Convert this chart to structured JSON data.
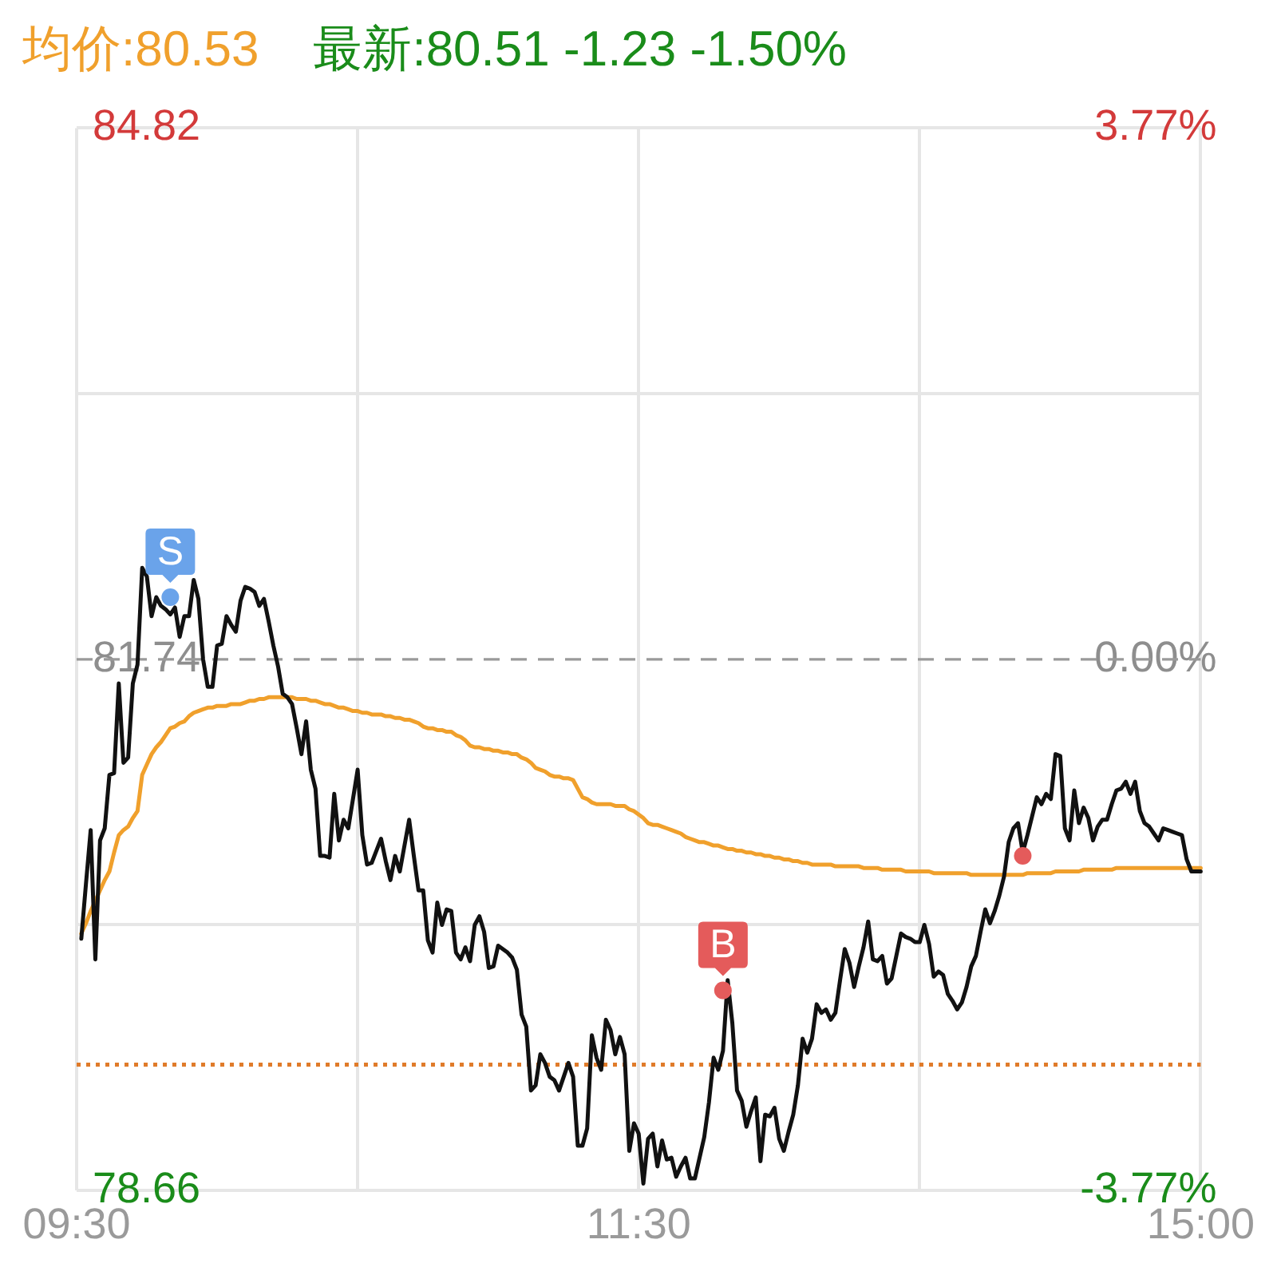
{
  "chart_data": {
    "type": "line",
    "legend": "top left",
    "marker": "none",
    "grid": true,
    "categories": [
      "09:30",
      null,
      null,
      null,
      null,
      null,
      null,
      null,
      null,
      null,
      null,
      null,
      null,
      null,
      null,
      null,
      null,
      null,
      null,
      null,
      null,
      null,
      null,
      null,
      null,
      null,
      null,
      null,
      null,
      null,
      null,
      null,
      null,
      null,
      null,
      null,
      null,
      null,
      null,
      null,
      null,
      null,
      null,
      null,
      null,
      null,
      null,
      null,
      null,
      null,
      null,
      null,
      null,
      null,
      null,
      null,
      null,
      null,
      null,
      null,
      null,
      null,
      null,
      null,
      null,
      null,
      null,
      null,
      null,
      null,
      null,
      null,
      null,
      null,
      null,
      null,
      null,
      null,
      null,
      null,
      null,
      null,
      null,
      null,
      null,
      null,
      null,
      null,
      null,
      null,
      null,
      null,
      null,
      null,
      null,
      null,
      null,
      null,
      null,
      null,
      null,
      null,
      null,
      null,
      null,
      null,
      null,
      null,
      null,
      null,
      null,
      null,
      null,
      null,
      null,
      null,
      null,
      null,
      null,
      null,
      "11:30",
      null,
      null,
      null,
      null,
      null,
      null,
      null,
      null,
      null,
      null,
      null,
      null,
      null,
      null,
      null,
      null,
      null,
      null,
      null,
      null,
      null,
      null,
      null,
      null,
      null,
      null,
      null,
      null,
      null,
      null,
      null,
      null,
      null,
      null,
      null,
      null,
      null,
      null,
      null,
      null,
      null,
      null,
      null,
      null,
      null,
      null,
      null,
      null,
      null,
      null,
      null,
      null,
      null,
      null,
      null,
      null,
      null,
      null,
      null,
      null,
      null,
      null,
      null,
      null,
      null,
      null,
      null,
      null,
      null,
      null,
      null,
      null,
      null,
      null,
      null,
      null,
      null,
      null,
      null,
      null,
      null,
      null,
      null,
      null,
      null,
      null,
      null,
      null,
      null,
      null,
      null,
      null,
      null,
      null,
      null,
      null,
      null,
      null,
      null,
      null,
      null,
      null,
      null,
      null,
      null,
      null,
      null,
      null,
      null,
      null,
      null,
      null,
      null,
      null,
      null,
      null,
      null,
      null,
      null,
      "15:00"
    ],
    "ylim": [
      78.66,
      84.82
    ],
    "yticks": [
      78.66,
      {
        "value": 80.2,
        "label": null
      },
      81.74,
      {
        "value": 83.28,
        "label": null
      },
      84.82
    ],
    "y2lim": [
      -3.77,
      3.77
    ],
    "y2ticks": [
      {
        "value": -3.77,
        "label": "-3.77%"
      },
      {
        "value": 0,
        "label": "0.00%"
      },
      {
        "value": 3.77,
        "label": "3.77%"
      }
    ],
    "ref_lines": [
      {
        "axis": "y",
        "value": 81.74,
        "line_style": "dashed",
        "color": "#9a9a9a"
      },
      {
        "axis": "y",
        "value": 79.39,
        "line_style": "dotted",
        "color": "#e07b2a"
      }
    ],
    "annotations": [
      "最新:80.51 -1.23 -1.50%",
      {
        "text": "S",
        "y": 82.1
      },
      {
        "text": "B",
        "y": 79.82
      }
    ],
    "series": [
      {
        "color": "#111111",
        "values": [
          null,
          80.12,
          80.44,
          80.75,
          80.0,
          80.69,
          80.76,
          81.07,
          81.08,
          81.6,
          81.14,
          81.17,
          81.6,
          81.71,
          82.27,
          82.22,
          81.99,
          82.1,
          82.05,
          82.03,
          82.0,
          82.04,
          81.87,
          81.99,
          81.99,
          82.2,
          82.09,
          81.74,
          81.58,
          81.58,
          81.82,
          81.83,
          81.99,
          81.94,
          81.9,
          82.08,
          82.16,
          82.15,
          82.13,
          82.05,
          82.09,
          81.96,
          81.82,
          81.7,
          81.54,
          81.52,
          81.48,
          81.34,
          81.19,
          81.38,
          81.1,
          80.99,
          80.6,
          80.6,
          80.59,
          80.96,
          80.69,
          80.81,
          80.76,
          80.93,
          81.1,
          80.72,
          80.55,
          80.56,
          80.63,
          80.7,
          80.57,
          80.46,
          80.6,
          80.51,
          80.66,
          80.81,
          80.6,
          80.4,
          80.4,
          80.11,
          80.04,
          80.33,
          80.2,
          80.29,
          80.28,
          80.04,
          80.0,
          80.07,
          79.99,
          80.2,
          80.25,
          80.16,
          79.95,
          79.96,
          80.08,
          80.06,
          80.04,
          80.01,
          79.94,
          79.68,
          79.61,
          79.24,
          79.27,
          79.45,
          79.4,
          79.32,
          79.3,
          79.24,
          79.32,
          79.4,
          79.32,
          78.92,
          78.92,
          79.02,
          79.56,
          79.43,
          79.36,
          79.65,
          79.59,
          79.45,
          79.55,
          79.45,
          78.89,
          79.05,
          78.99,
          78.7,
          78.96,
          78.99,
          78.8,
          78.95,
          78.84,
          78.85,
          78.74,
          78.8,
          78.85,
          78.73,
          78.73,
          78.85,
          78.97,
          79.17,
          79.43,
          79.36,
          79.47,
          79.88,
          79.63,
          79.24,
          79.18,
          79.03,
          79.12,
          79.2,
          78.83,
          79.1,
          79.09,
          79.14,
          78.96,
          78.89,
          79.0,
          79.1,
          79.27,
          79.54,
          79.46,
          79.54,
          79.74,
          79.69,
          79.71,
          79.65,
          79.69,
          79.88,
          80.06,
          79.98,
          79.84,
          79.96,
          80.07,
          80.22,
          80.0,
          79.99,
          80.02,
          79.86,
          79.89,
          80.02,
          80.15,
          80.13,
          80.12,
          80.1,
          80.1,
          80.2,
          80.09,
          79.9,
          79.93,
          79.91,
          79.8,
          79.76,
          79.71,
          79.75,
          79.84,
          79.96,
          80.02,
          80.16,
          80.29,
          80.21,
          80.28,
          80.37,
          80.48,
          80.68,
          80.76,
          80.79,
          80.62,
          80.72,
          80.83,
          80.94,
          80.9,
          80.96,
          80.93,
          81.19,
          81.18,
          80.76,
          80.69,
          80.98,
          80.79,
          80.88,
          80.82,
          80.69,
          80.77,
          80.81,
          80.81,
          80.9,
          80.98,
          80.99,
          81.03,
          80.96,
          81.03,
          80.86,
          80.79,
          80.77,
          80.73,
          80.69,
          80.76,
          80.75,
          80.74,
          80.73,
          80.72,
          80.58,
          80.51,
          80.51,
          80.51
        ]
      },
      {
        "name": "均价:80.53",
        "color": "#f0a02c",
        "values": [
          null,
          80.15,
          80.21,
          80.28,
          80.34,
          80.4,
          80.46,
          80.51,
          80.62,
          80.72,
          80.75,
          80.77,
          80.82,
          80.86,
          81.07,
          81.13,
          81.19,
          81.23,
          81.26,
          81.3,
          81.34,
          81.35,
          81.37,
          81.38,
          81.41,
          81.43,
          81.44,
          81.45,
          81.46,
          81.46,
          81.47,
          81.47,
          81.47,
          81.48,
          81.48,
          81.48,
          81.49,
          81.5,
          81.5,
          81.51,
          81.51,
          81.52,
          81.52,
          81.52,
          81.52,
          81.52,
          81.52,
          81.51,
          81.51,
          81.51,
          81.5,
          81.5,
          81.49,
          81.48,
          81.48,
          81.47,
          81.46,
          81.46,
          81.45,
          81.44,
          81.44,
          81.43,
          81.43,
          81.42,
          81.42,
          81.42,
          81.41,
          81.41,
          81.4,
          81.4,
          81.39,
          81.39,
          81.38,
          81.37,
          81.35,
          81.34,
          81.34,
          81.33,
          81.33,
          81.32,
          81.32,
          81.3,
          81.29,
          81.27,
          81.24,
          81.23,
          81.23,
          81.22,
          81.22,
          81.21,
          81.21,
          81.2,
          81.2,
          81.19,
          81.19,
          81.17,
          81.16,
          81.14,
          81.11,
          81.1,
          81.09,
          81.07,
          81.06,
          81.06,
          81.05,
          81.05,
          81.04,
          80.99,
          80.94,
          80.93,
          80.91,
          80.9,
          80.9,
          80.9,
          80.9,
          80.89,
          80.89,
          80.89,
          80.87,
          80.86,
          80.84,
          80.82,
          80.79,
          80.78,
          80.78,
          80.77,
          80.76,
          80.75,
          80.74,
          80.73,
          80.71,
          80.7,
          80.69,
          80.68,
          80.68,
          80.67,
          80.66,
          80.66,
          80.65,
          80.64,
          80.64,
          80.63,
          80.63,
          80.62,
          80.62,
          80.61,
          80.61,
          80.6,
          80.6,
          80.59,
          80.59,
          80.58,
          80.58,
          80.57,
          80.57,
          80.56,
          80.56,
          80.55,
          80.55,
          80.55,
          80.55,
          80.55,
          80.54,
          80.54,
          80.54,
          80.54,
          80.54,
          80.54,
          80.53,
          80.53,
          80.53,
          80.53,
          80.52,
          80.52,
          80.52,
          80.52,
          80.52,
          80.51,
          80.51,
          80.51,
          80.51,
          80.51,
          80.51,
          80.5,
          80.5,
          80.5,
          80.5,
          80.5,
          80.5,
          80.5,
          80.5,
          80.49,
          80.49,
          80.49,
          80.49,
          80.49,
          80.49,
          80.49,
          80.49,
          80.49,
          80.49,
          80.49,
          80.49,
          80.5,
          80.5,
          80.5,
          80.5,
          80.5,
          80.5,
          80.51,
          80.51,
          80.51,
          80.51,
          80.51,
          80.51,
          80.52,
          80.52,
          80.52,
          80.52,
          80.52,
          80.52,
          80.52,
          80.53,
          80.53,
          80.53,
          80.53,
          80.53,
          80.53,
          80.53,
          80.53,
          80.53,
          80.53,
          80.53,
          80.53,
          80.53,
          80.53,
          80.53,
          80.53,
          80.53,
          80.53,
          80.53
        ]
      },
      {
        "type": "scatter",
        "marker": "circle",
        "color": "#6aa3ea",
        "values": [
          null,
          null,
          null,
          null,
          null,
          null,
          null,
          null,
          null,
          null,
          null,
          null,
          null,
          null,
          null,
          null,
          null,
          null,
          null,
          null,
          82.1,
          null,
          null,
          null,
          null,
          null,
          null,
          null,
          null,
          null,
          null,
          null,
          null,
          null,
          null,
          null,
          null,
          null,
          null,
          null,
          null,
          null,
          null,
          null,
          null,
          null,
          null,
          null,
          null,
          null,
          null,
          null,
          null,
          null,
          null,
          null,
          null,
          null,
          null,
          null,
          null,
          null,
          null,
          null,
          null,
          null,
          null,
          null,
          null,
          null,
          null,
          null,
          null,
          null,
          null,
          null,
          null,
          null,
          null,
          null,
          null,
          null,
          null,
          null,
          null,
          null,
          null,
          null,
          null,
          null,
          null,
          null,
          null,
          null,
          null,
          null,
          null,
          null,
          null,
          null,
          null,
          null,
          null,
          null,
          null,
          null,
          null,
          null,
          null,
          null,
          null,
          null,
          null,
          null,
          null,
          null,
          null,
          null,
          null,
          null,
          null,
          null,
          null,
          null,
          null,
          null,
          null,
          null,
          null,
          null,
          null,
          null,
          null,
          null,
          null,
          null,
          null,
          null,
          null,
          null,
          null,
          null,
          null,
          null,
          null,
          null,
          null,
          null,
          null,
          null,
          null,
          null,
          null,
          null,
          null,
          null,
          null,
          null,
          null,
          null,
          null,
          null,
          null,
          null,
          null,
          null,
          null,
          null,
          null,
          null,
          null,
          null,
          null,
          null,
          null,
          null,
          null,
          null,
          null,
          null,
          null,
          null,
          null,
          null,
          null,
          null,
          null,
          null,
          null,
          null,
          null,
          null,
          null,
          null,
          null,
          null,
          null,
          null,
          null,
          null,
          null,
          null,
          null,
          null,
          null,
          null,
          null,
          null,
          null,
          null,
          null,
          null,
          null,
          null,
          null,
          null,
          null,
          null,
          null,
          null,
          null,
          null,
          null,
          null,
          null,
          null,
          null,
          null,
          null,
          null,
          null,
          null,
          null,
          null,
          null,
          null,
          null,
          null,
          null,
          null,
          null
        ]
      },
      {
        "type": "scatter",
        "marker": "circle",
        "color": "#e45b5b",
        "values": [
          null,
          null,
          null,
          null,
          null,
          null,
          null,
          null,
          null,
          null,
          null,
          null,
          null,
          null,
          null,
          null,
          null,
          null,
          null,
          null,
          null,
          null,
          null,
          null,
          null,
          null,
          null,
          null,
          null,
          null,
          null,
          null,
          null,
          null,
          null,
          null,
          null,
          null,
          null,
          null,
          null,
          null,
          null,
          null,
          null,
          null,
          null,
          null,
          null,
          null,
          null,
          null,
          null,
          null,
          null,
          null,
          null,
          null,
          null,
          null,
          null,
          null,
          null,
          null,
          null,
          null,
          null,
          null,
          null,
          null,
          null,
          null,
          null,
          null,
          null,
          null,
          null,
          null,
          null,
          null,
          null,
          null,
          null,
          null,
          null,
          null,
          null,
          null,
          null,
          null,
          null,
          null,
          null,
          null,
          null,
          null,
          null,
          null,
          null,
          null,
          null,
          null,
          null,
          null,
          null,
          null,
          null,
          null,
          null,
          null,
          null,
          null,
          null,
          null,
          null,
          null,
          null,
          null,
          null,
          null,
          null,
          null,
          null,
          null,
          null,
          null,
          null,
          null,
          null,
          null,
          null,
          null,
          null,
          null,
          null,
          null,
          null,
          null,
          79.82,
          null,
          null,
          null,
          null,
          null,
          null,
          null,
          null,
          null,
          null,
          null,
          null,
          null,
          null,
          null,
          null,
          null,
          null,
          null,
          null,
          null,
          null,
          null,
          null,
          null,
          null,
          null,
          null,
          null,
          null,
          null,
          null,
          null,
          null,
          null,
          null,
          null,
          null,
          null,
          null,
          null,
          null,
          null,
          null,
          null,
          null,
          null,
          null,
          null,
          null,
          null,
          null,
          null,
          null,
          null,
          null,
          null,
          null,
          null,
          null,
          null,
          null,
          null,
          80.6,
          null,
          null,
          null,
          null,
          null,
          null,
          null,
          null,
          null,
          null,
          null,
          null,
          null,
          null,
          null,
          null,
          null,
          null,
          null,
          null,
          null,
          null,
          null,
          null,
          null,
          null,
          null,
          null,
          null,
          null,
          null,
          null,
          null,
          null,
          null,
          null,
          null,
          null
        ]
      }
    ]
  }
}
